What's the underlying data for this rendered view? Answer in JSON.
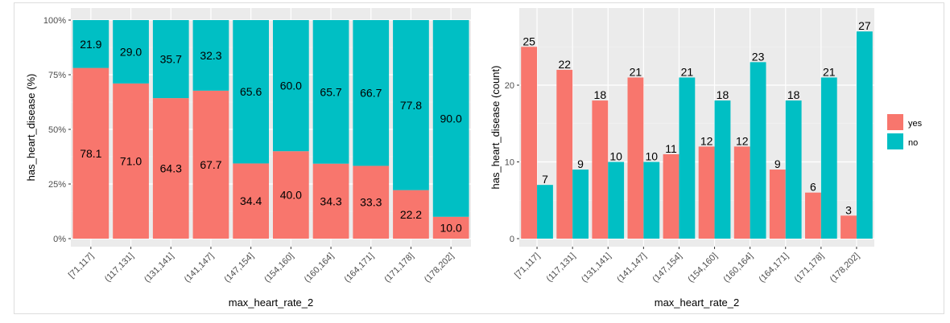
{
  "chart_data": [
    {
      "type": "bar",
      "stacked": true,
      "normalized": true,
      "categories": [
        "[71,117]",
        "(117,131]",
        "(131,141]",
        "(141,147]",
        "(147,154]",
        "(154,160]",
        "(160,164]",
        "(164,171]",
        "(171,178]",
        "(178,202]"
      ],
      "series": [
        {
          "name": "yes",
          "values": [
            78.1,
            71.0,
            64.3,
            67.7,
            34.4,
            40.0,
            34.3,
            33.3,
            22.2,
            10.0
          ]
        },
        {
          "name": "no",
          "values": [
            21.9,
            29.0,
            35.7,
            32.3,
            65.6,
            60.0,
            65.7,
            66.7,
            77.8,
            90.0
          ]
        }
      ],
      "labels": {
        "yes": [
          "78.1",
          "71.0",
          "64.3",
          "67.7",
          "34.4",
          "40.0",
          "34.3",
          "33.3",
          "22.2",
          "10.0"
        ],
        "no": [
          "21.9",
          "29.0",
          "35.7",
          "32.3",
          "65.6",
          "60.0",
          "65.7",
          "66.7",
          "77.8",
          "90.0"
        ]
      },
      "xlabel": "max_heart_rate_2",
      "ylabel": "has_heart_disease  (%)",
      "yticks": [
        "0%",
        "25%",
        "50%",
        "75%",
        "100%"
      ],
      "ylim": [
        0,
        100
      ],
      "grid": true
    },
    {
      "type": "bar",
      "grouped": true,
      "categories": [
        "[71,117]",
        "(117,131]",
        "(131,141]",
        "(141,147]",
        "(147,154]",
        "(154,160]",
        "(160,164]",
        "(164,171]",
        "(171,178]",
        "(178,202]"
      ],
      "series": [
        {
          "name": "yes",
          "values": [
            25,
            22,
            18,
            21,
            11,
            12,
            12,
            9,
            6,
            3
          ]
        },
        {
          "name": "no",
          "values": [
            7,
            9,
            10,
            10,
            21,
            18,
            23,
            18,
            21,
            27
          ]
        }
      ],
      "xlabel": "max_heart_rate_2",
      "ylabel": "has_heart_disease  (count)",
      "yticks": [
        "0",
        "10",
        "20"
      ],
      "ylim": [
        -1.5,
        28.5
      ],
      "grid": true
    }
  ],
  "legend": {
    "position": "right",
    "items": [
      {
        "label": "yes",
        "color": "#F8766D"
      },
      {
        "label": "no",
        "color": "#00BFC4"
      }
    ]
  },
  "colors": {
    "yes": "#F8766D",
    "no": "#00BFC4",
    "panel": "#EBEBEB",
    "grid": "#FFFFFF"
  }
}
